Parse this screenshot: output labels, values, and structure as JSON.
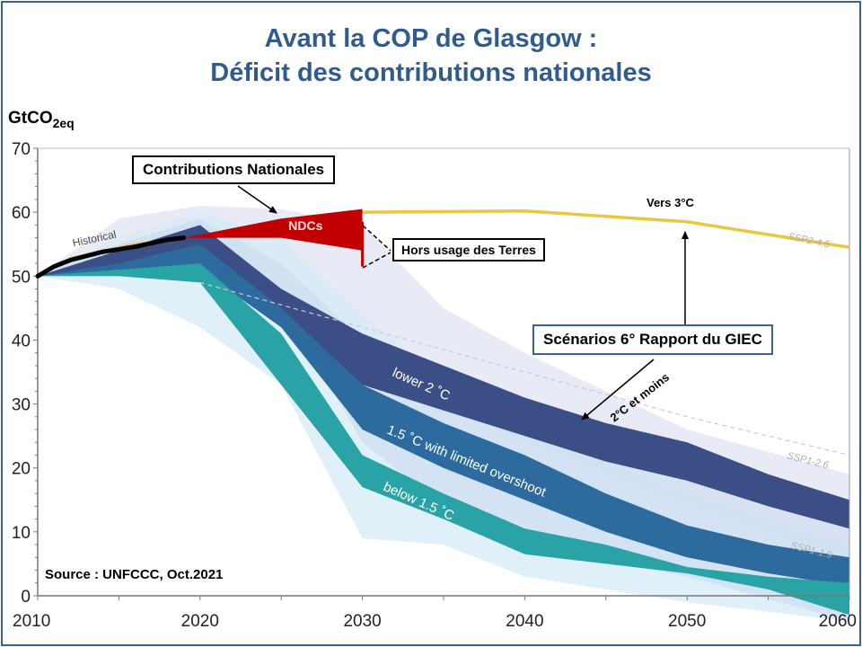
{
  "title": {
    "line1": "Avant la COP de Glasgow :",
    "line2": "Déficit des contributions nationales"
  },
  "colors": {
    "title": "#2f5b91",
    "frame": "#3a6395",
    "ndc_red": "#c00000",
    "ssp245_yellow": "#e8c840",
    "lower2c": "#3b4e85",
    "limited_overshoot": "#2d6b9e",
    "below15": "#2aa3a6",
    "light_band": "#dfe3f1",
    "lightest_band": "#d6f0f6"
  },
  "annotations": {
    "contributions_nationales": "Contributions Nationales",
    "ndcs": "NDCs",
    "hors_usage": "Hors usage des Terres",
    "vers_3c": "Vers 3°C",
    "scenarios": "Scénarios 6° Rapport du GIEC",
    "deux_c": "2°C et moins",
    "source": "Source : UNFCCC, Oct.2021"
  },
  "chart_data": {
    "type": "area",
    "title": "Avant la COP de Glasgow : Déficit des contributions nationales",
    "ylabel_main": "GtCO",
    "ylabel_sub": "2eq",
    "xlabel": "",
    "xlim": [
      2010,
      2060
    ],
    "ylim": [
      0,
      70
    ],
    "x_ticks": [
      "2010",
      "2020",
      "2030",
      "2040",
      "2050",
      "2060"
    ],
    "y_ticks": [
      "0",
      "10",
      "20",
      "30",
      "40",
      "50",
      "60",
      "70"
    ],
    "grid": false,
    "series": [
      {
        "name": "Historical",
        "type": "line",
        "x": [
          2010,
          2011,
          2012,
          2014,
          2016,
          2018,
          2019
        ],
        "y": [
          50,
          51.5,
          52.5,
          53.8,
          54.6,
          55.7,
          56
        ]
      },
      {
        "name": "NDCs",
        "type": "range",
        "x": [
          2019,
          2025,
          2030
        ],
        "low": [
          56,
          56,
          54
        ],
        "high": [
          56,
          59,
          60.5
        ]
      },
      {
        "name": "NDCs hors usage des Terres",
        "type": "range",
        "x": [
          2030
        ],
        "low": [
          51.5
        ],
        "high": [
          58.5
        ]
      },
      {
        "name": "SSP2-4.5",
        "type": "line",
        "x": [
          2030,
          2040,
          2050,
          2060
        ],
        "y": [
          60,
          60.2,
          58.5,
          54.5
        ]
      },
      {
        "name": "lower 2 °C",
        "type": "range",
        "x": [
          2010,
          2015,
          2020,
          2025,
          2030,
          2035,
          2040,
          2045,
          2050,
          2055,
          2060
        ],
        "low": [
          50,
          51,
          53,
          43,
          33,
          29,
          25,
          21,
          18,
          14,
          10.5
        ],
        "high": [
          50,
          54,
          58,
          48,
          41,
          36,
          31,
          27,
          24,
          19,
          15
        ]
      },
      {
        "name": "1.5 °C with limited overshoot",
        "type": "range",
        "x": [
          2010,
          2015,
          2020,
          2025,
          2030,
          2035,
          2040,
          2045,
          2050,
          2055,
          2060
        ],
        "low": [
          50,
          51,
          51,
          42,
          26,
          20,
          15,
          10,
          6,
          3.5,
          1.5
        ],
        "high": [
          50,
          52,
          55,
          45,
          33,
          27,
          22,
          16,
          11,
          8,
          6
        ]
      },
      {
        "name": "below 1.5 °C",
        "type": "range",
        "x": [
          2010,
          2015,
          2020,
          2025,
          2030,
          2035,
          2040,
          2045,
          2050,
          2055,
          2060
        ],
        "low": [
          50,
          50,
          49,
          33,
          17,
          12,
          6.5,
          5,
          3.5,
          1,
          -3
        ],
        "high": [
          50,
          51,
          52,
          41,
          22,
          16,
          10.5,
          8,
          4.5,
          3,
          2
        ]
      },
      {
        "name": "SSP1-2.6",
        "type": "label"
      },
      {
        "name": "SSP1-1.9",
        "type": "label"
      }
    ]
  }
}
